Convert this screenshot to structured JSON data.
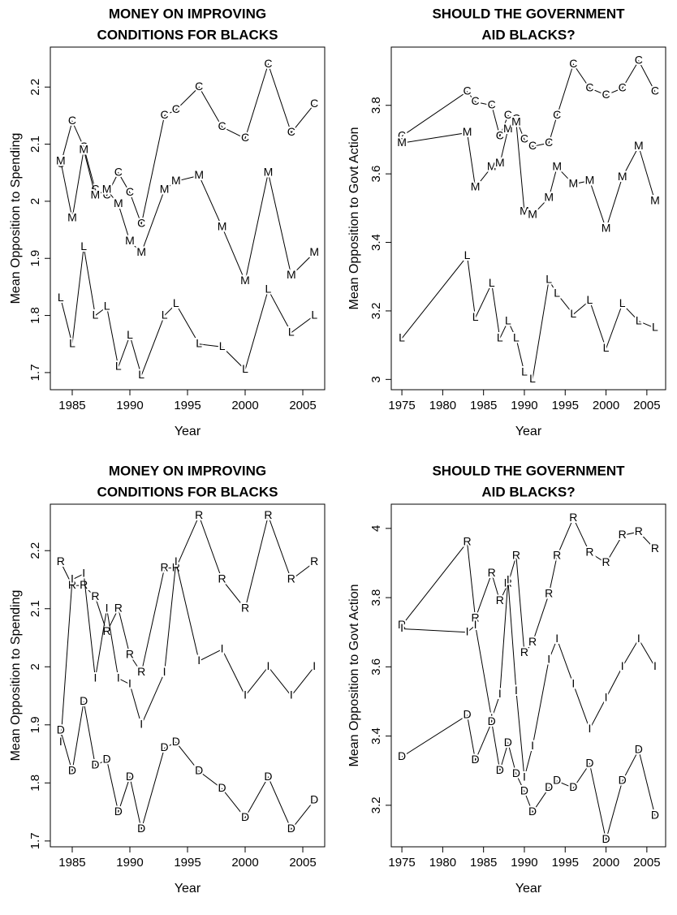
{
  "chart_data": [
    {
      "type": "line",
      "title": [
        "MONEY ON IMPROVING",
        "CONDITIONS FOR BLACKS"
      ],
      "xlabel": "Year",
      "ylabel": "Mean Opposition to Spending",
      "x": [
        1984,
        1985,
        1986,
        1987,
        1988,
        1989,
        1990,
        1991,
        1993,
        1994,
        1996,
        1998,
        2000,
        2002,
        2004,
        2006
      ],
      "xlim": [
        1983.1,
        2006.9
      ],
      "xticks": [
        1985,
        1990,
        1995,
        2000,
        2005
      ],
      "ylim": [
        1.67,
        2.27
      ],
      "yticks": [
        1.7,
        1.8,
        1.9,
        2.0,
        2.1,
        2.2
      ],
      "series": [
        {
          "name": "C",
          "color": "#000000",
          "values": [
            2.065,
            2.14,
            2.095,
            2.02,
            2.01,
            2.05,
            2.015,
            1.96,
            2.15,
            2.16,
            2.2,
            2.13,
            2.11,
            2.24,
            2.12,
            2.17
          ]
        },
        {
          "name": "M",
          "color": "#000000",
          "values": [
            2.07,
            1.97,
            2.09,
            2.01,
            2.02,
            1.995,
            1.93,
            1.91,
            2.02,
            2.035,
            2.045,
            1.955,
            1.86,
            2.05,
            1.87,
            1.91
          ]
        },
        {
          "name": "L",
          "color": "#000000",
          "values": [
            1.83,
            1.75,
            1.92,
            1.8,
            1.815,
            1.71,
            1.765,
            1.695,
            1.8,
            1.82,
            1.75,
            1.745,
            1.705,
            1.845,
            1.77,
            1.8
          ]
        }
      ]
    },
    {
      "type": "line",
      "title": [
        "SHOULD THE GOVERNMENT",
        "AID BLACKS?"
      ],
      "xlabel": "Year",
      "ylabel": "Mean Opposition to Govt Action",
      "x": [
        1975,
        1983,
        1984,
        1986,
        1987,
        1988,
        1989,
        1990,
        1991,
        1993,
        1994,
        1996,
        1998,
        2000,
        2002,
        2004,
        2006
      ],
      "xlim": [
        1973.7,
        2007.3
      ],
      "xticks": [
        1975,
        1980,
        1985,
        1990,
        1995,
        2000,
        2005
      ],
      "ylim": [
        2.97,
        3.97
      ],
      "yticks": [
        3.0,
        3.2,
        3.4,
        3.6,
        3.8
      ],
      "series": [
        {
          "name": "C",
          "color": "#000000",
          "values": [
            3.71,
            3.84,
            3.81,
            3.8,
            3.71,
            3.77,
            3.76,
            3.7,
            3.68,
            3.69,
            3.77,
            3.92,
            3.85,
            3.83,
            3.85,
            3.93,
            3.84
          ]
        },
        {
          "name": "M",
          "color": "#000000",
          "values": [
            3.69,
            3.72,
            3.56,
            3.62,
            3.63,
            3.73,
            3.75,
            3.49,
            3.48,
            3.53,
            3.62,
            3.57,
            3.58,
            3.44,
            3.59,
            3.68,
            3.52
          ]
        },
        {
          "name": "L",
          "color": "#000000",
          "values": [
            3.12,
            3.36,
            3.18,
            3.28,
            3.12,
            3.17,
            3.12,
            3.02,
            3.0,
            3.29,
            3.25,
            3.19,
            3.23,
            3.09,
            3.22,
            3.17,
            3.15
          ]
        }
      ]
    },
    {
      "type": "line",
      "title": [
        "MONEY ON IMPROVING",
        "CONDITIONS FOR BLACKS"
      ],
      "xlabel": "Year",
      "ylabel": "Mean Opposition to Spending",
      "x": [
        1984,
        1985,
        1986,
        1987,
        1988,
        1989,
        1990,
        1991,
        1993,
        1994,
        1996,
        1998,
        2000,
        2002,
        2004,
        2006
      ],
      "xlim": [
        1983.1,
        2006.9
      ],
      "xticks": [
        1985,
        1990,
        1995,
        2000,
        2005
      ],
      "ylim": [
        1.69,
        2.28
      ],
      "yticks": [
        1.7,
        1.8,
        1.9,
        2.0,
        2.1,
        2.2
      ],
      "series": [
        {
          "name": "R",
          "color": "#000000",
          "values": [
            2.18,
            2.14,
            2.14,
            2.12,
            2.06,
            2.1,
            2.02,
            1.99,
            2.17,
            2.17,
            2.26,
            2.15,
            2.1,
            2.26,
            2.15,
            2.18
          ]
        },
        {
          "name": "I",
          "color": "#000000",
          "values": [
            1.87,
            2.15,
            2.16,
            1.98,
            2.1,
            1.98,
            1.97,
            1.9,
            1.99,
            2.18,
            2.01,
            2.03,
            1.95,
            2.0,
            1.95,
            2.0
          ]
        },
        {
          "name": "D",
          "color": "#000000",
          "values": [
            1.89,
            1.82,
            1.94,
            1.83,
            1.84,
            1.75,
            1.81,
            1.72,
            1.86,
            1.87,
            1.82,
            1.79,
            1.74,
            1.81,
            1.72,
            1.77
          ]
        }
      ]
    },
    {
      "type": "line",
      "title": [
        "SHOULD THE GOVERNMENT",
        "AID BLACKS?"
      ],
      "xlabel": "Year",
      "ylabel": "Mean Opposition to Govt Action",
      "x": [
        1975,
        1983,
        1984,
        1986,
        1987,
        1988,
        1989,
        1990,
        1991,
        1993,
        1994,
        1996,
        1998,
        2000,
        2002,
        2004,
        2006
      ],
      "xlim": [
        1973.7,
        2007.3
      ],
      "xticks": [
        1975,
        1980,
        1985,
        1990,
        1995,
        2000,
        2005
      ],
      "ylim": [
        3.08,
        4.07
      ],
      "yticks": [
        3.2,
        3.4,
        3.6,
        3.8,
        4.0
      ],
      "series": [
        {
          "name": "R",
          "color": "#000000",
          "values": [
            3.72,
            3.96,
            3.74,
            3.87,
            3.79,
            3.84,
            3.92,
            3.64,
            3.67,
            3.81,
            3.92,
            4.03,
            3.93,
            3.9,
            3.98,
            3.99,
            3.94
          ]
        },
        {
          "name": "I",
          "color": "#000000",
          "values": [
            3.71,
            3.7,
            3.72,
            3.45,
            3.52,
            3.85,
            3.53,
            3.28,
            3.37,
            3.62,
            3.68,
            3.55,
            3.42,
            3.51,
            3.6,
            3.68,
            3.6
          ]
        },
        {
          "name": "D",
          "color": "#000000",
          "values": [
            3.34,
            3.46,
            3.33,
            3.44,
            3.3,
            3.38,
            3.29,
            3.24,
            3.18,
            3.25,
            3.27,
            3.25,
            3.32,
            3.1,
            3.27,
            3.36,
            3.17
          ]
        }
      ]
    }
  ]
}
